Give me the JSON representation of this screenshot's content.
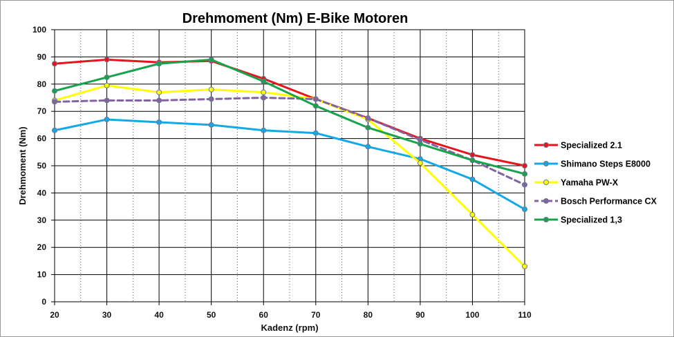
{
  "chart_data": {
    "type": "line",
    "title": "Drehmoment (Nm) E-Bike Motoren",
    "xlabel": "Kadenz (rpm)",
    "ylabel": "Drehmoment (Nm)",
    "x": [
      20,
      30,
      40,
      50,
      60,
      70,
      80,
      90,
      100,
      110
    ],
    "xlim": [
      20,
      110
    ],
    "ylim": [
      0,
      100
    ],
    "x_ticks": [
      "20",
      "30",
      "40",
      "50",
      "60",
      "70",
      "80",
      "90",
      "100",
      "110"
    ],
    "y_ticks": [
      "0",
      "10",
      "20",
      "30",
      "40",
      "50",
      "60",
      "70",
      "80",
      "90",
      "100"
    ],
    "grid": true,
    "legend_position": "right",
    "plot_background": "#ffffff",
    "series": [
      {
        "name": "Specialized 2.1",
        "color": "#e8141b",
        "dashed": false,
        "marker_fill": "#e8141b",
        "values": [
          87.5,
          89,
          88,
          88.5,
          82,
          74.5,
          67.5,
          60,
          54,
          50
        ]
      },
      {
        "name": "Shimano Steps E8000",
        "color": "#12a9e6",
        "dashed": false,
        "marker_fill": "#12a9e6",
        "values": [
          63,
          67,
          66,
          65,
          63,
          62,
          57,
          52.5,
          45,
          34
        ]
      },
      {
        "name": "Yamaha PW-X",
        "color": "#ffff00",
        "dashed": false,
        "marker_fill": "#ffff00",
        "values": [
          74,
          79.5,
          77,
          78,
          77,
          74.5,
          67,
          51,
          32,
          13
        ]
      },
      {
        "name": "Bosch Performance CX",
        "color": "#8064a2",
        "dashed": true,
        "marker_fill": "#8064a2",
        "values": [
          73.5,
          74,
          74,
          74.5,
          75,
          74.5,
          67.5,
          59.5,
          52,
          43
        ]
      },
      {
        "name": "Specialized 1,3",
        "color": "#16a34a",
        "dashed": false,
        "marker_fill": "#16a34a",
        "values": [
          77.5,
          82.5,
          87.5,
          89,
          81,
          72,
          64,
          58,
          52,
          47
        ]
      }
    ]
  }
}
